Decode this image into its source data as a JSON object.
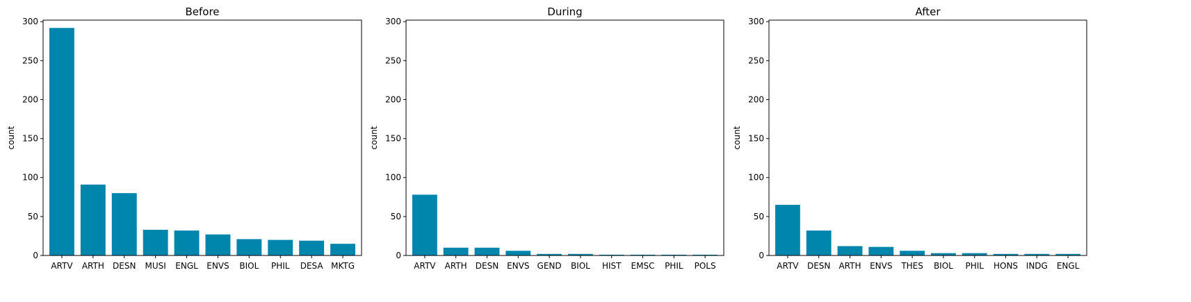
{
  "chart_data": [
    {
      "type": "bar",
      "title": "Before",
      "xlabel": "",
      "ylabel": "count",
      "ylim": [
        0,
        302
      ],
      "yticks": [
        0,
        50,
        100,
        150,
        200,
        250,
        300
      ],
      "categories": [
        "ARTV",
        "ARTH",
        "DESN",
        "MUSI",
        "ENGL",
        "ENVS",
        "BIOL",
        "PHIL",
        "DESA",
        "MKTG"
      ],
      "values": [
        292,
        91,
        80,
        33,
        32,
        27,
        21,
        20,
        19,
        15
      ],
      "bar_color": "#0085AD",
      "grid": false
    },
    {
      "type": "bar",
      "title": "During",
      "xlabel": "",
      "ylabel": "count",
      "ylim": [
        0,
        302
      ],
      "yticks": [
        0,
        50,
        100,
        150,
        200,
        250,
        300
      ],
      "categories": [
        "ARTV",
        "ARTH",
        "DESN",
        "ENVS",
        "GEND",
        "BIOL",
        "HIST",
        "EMSC",
        "PHIL",
        "POLS"
      ],
      "values": [
        78,
        10,
        10,
        6,
        2,
        2,
        1,
        1,
        1,
        1
      ],
      "bar_color": "#0085AD",
      "grid": false
    },
    {
      "type": "bar",
      "title": "After",
      "xlabel": "",
      "ylabel": "count",
      "ylim": [
        0,
        302
      ],
      "yticks": [
        0,
        50,
        100,
        150,
        200,
        250,
        300
      ],
      "categories": [
        "ARTV",
        "DESN",
        "ARTH",
        "ENVS",
        "THES",
        "BIOL",
        "PHIL",
        "HONS",
        "INDG",
        "ENGL"
      ],
      "values": [
        65,
        32,
        12,
        11,
        6,
        3,
        3,
        2,
        2,
        2
      ],
      "bar_color": "#0085AD",
      "grid": false
    }
  ]
}
